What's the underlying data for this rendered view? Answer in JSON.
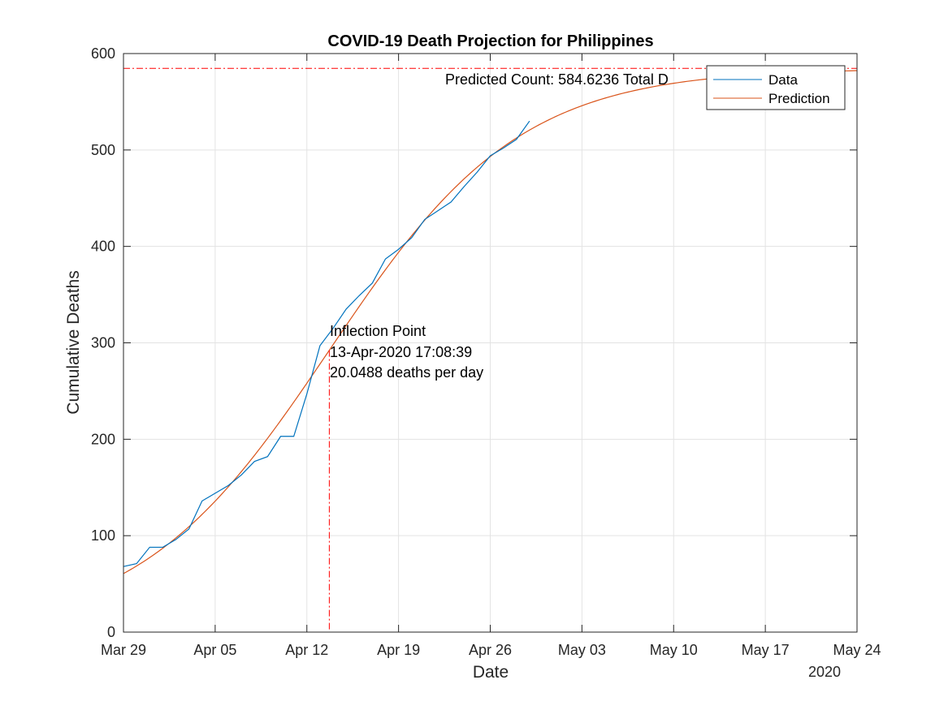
{
  "chart_data": {
    "type": "line",
    "title": "COVID-19 Death Projection for Philippines",
    "xlabel": "Date",
    "ylabel": "Cumulative Deaths",
    "year_label": "2020",
    "x_start": "Mar 29",
    "x_range_days": [
      0,
      56
    ],
    "x_ticks": [
      {
        "day": 0,
        "label": "Mar 29"
      },
      {
        "day": 7,
        "label": "Apr 05"
      },
      {
        "day": 14,
        "label": "Apr 12"
      },
      {
        "day": 21,
        "label": "Apr 19"
      },
      {
        "day": 28,
        "label": "Apr 26"
      },
      {
        "day": 35,
        "label": "May 03"
      },
      {
        "day": 42,
        "label": "May 10"
      },
      {
        "day": 49,
        "label": "May 17"
      },
      {
        "day": 56,
        "label": "May 24"
      }
    ],
    "ylim": [
      0,
      600
    ],
    "y_ticks": [
      0,
      100,
      200,
      300,
      400,
      500,
      600
    ],
    "grid": true,
    "legend_position": "top-right",
    "series": [
      {
        "name": "Data",
        "color": "#0072BD",
        "days": [
          0,
          1,
          2,
          3,
          4,
          5,
          6,
          7,
          8,
          9,
          10,
          11,
          12,
          13,
          14,
          15,
          16,
          17,
          18,
          19,
          20,
          21,
          22,
          23,
          24,
          25,
          26,
          27,
          28,
          29,
          30,
          31
        ],
        "values": [
          68,
          71,
          88,
          88,
          96,
          107,
          136,
          144,
          152,
          163,
          177,
          182,
          203,
          203,
          247,
          297,
          315,
          335,
          349,
          362,
          387,
          397,
          409,
          428,
          437,
          446,
          462,
          477,
          494,
          502,
          511,
          530
        ]
      },
      {
        "name": "Prediction",
        "color": "#D95319",
        "model": "logistic",
        "K": 584.6236,
        "rate_per_day": 0.13718,
        "inflection_day": 15.714,
        "day_range": [
          0,
          56
        ]
      }
    ],
    "annotations": {
      "predicted_count_label": "Predicted Count: 584.6236 Total D",
      "predicted_count_value": 584.6236,
      "inflection_day": 15.714,
      "inflection_lines": [
        "Inflection Point",
        "13-Apr-2020 17:08:39",
        "20.0488 deaths per day"
      ],
      "ref_line_color": "#FF0000"
    }
  }
}
